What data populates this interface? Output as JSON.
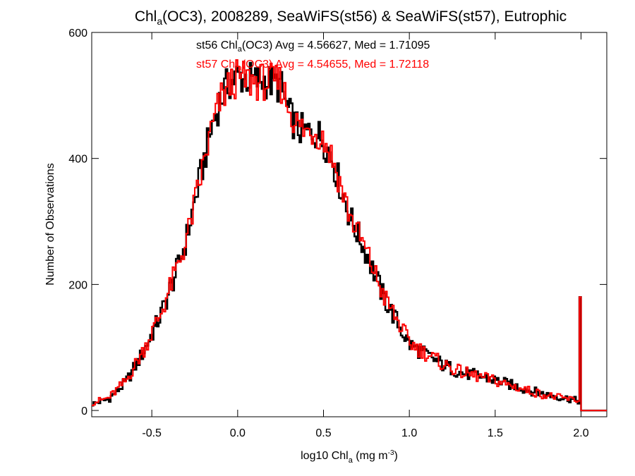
{
  "chart_data": {
    "type": "line",
    "title": {
      "main": "Chl",
      "sub": "a",
      "rest": "(OC3), 2008289, SeaWiFS(st56) & SeaWiFS(st57), Eutrophic"
    },
    "xlabel": {
      "main": "log10 Chl",
      "sub": "a",
      "rest": " (mg m",
      "sup": "-3",
      "end": ")"
    },
    "ylabel": "Number of Observations",
    "xlim": [
      -0.85,
      2.15
    ],
    "ylim": [
      -10,
      600
    ],
    "x_ticks": [
      -0.5,
      0.0,
      0.5,
      1.0,
      1.5,
      2.0
    ],
    "x_tick_labels": [
      "-0.5",
      "0.0",
      "0.5",
      "1.0",
      "1.5",
      "2.0"
    ],
    "y_ticks": [
      0,
      200,
      400,
      600
    ],
    "y_tick_labels": [
      "0",
      "200",
      "400",
      "600"
    ],
    "grid": false,
    "legend_position": "top-center",
    "series": [
      {
        "name": "st56",
        "label": {
          "pre": "st56 Chl",
          "sub": "a",
          "post": "(OC3) Avg = 4.56627, Med = 1.71095"
        },
        "color": "#000000",
        "x": [
          -0.85,
          -0.75,
          -0.65,
          -0.55,
          -0.45,
          -0.35,
          -0.3,
          -0.25,
          -0.2,
          -0.15,
          -0.1,
          -0.05,
          0.0,
          0.05,
          0.1,
          0.15,
          0.2,
          0.25,
          0.3,
          0.35,
          0.4,
          0.45,
          0.5,
          0.55,
          0.6,
          0.65,
          0.7,
          0.75,
          0.8,
          0.85,
          0.9,
          0.95,
          1.0,
          1.1,
          1.2,
          1.3,
          1.4,
          1.5,
          1.6,
          1.7,
          1.8,
          1.9,
          1.99
        ],
        "y": [
          10,
          18,
          45,
          92,
          150,
          225,
          270,
          332,
          392,
          450,
          495,
          520,
          530,
          528,
          522,
          525,
          520,
          515,
          470,
          448,
          440,
          442,
          430,
          400,
          355,
          310,
          280,
          250,
          215,
          180,
          155,
          130,
          105,
          88,
          72,
          60,
          55,
          48,
          40,
          32,
          25,
          20,
          15
        ]
      },
      {
        "name": "st57",
        "label": {
          "pre": "st57 Chl",
          "sub": "a",
          "post": "(OC3) Avg = 4.54655, Med = 1.72118"
        },
        "color": "#ff0000",
        "x": [
          -0.85,
          -0.75,
          -0.65,
          -0.55,
          -0.45,
          -0.35,
          -0.3,
          -0.25,
          -0.2,
          -0.15,
          -0.1,
          -0.05,
          0.0,
          0.05,
          0.1,
          0.15,
          0.2,
          0.25,
          0.3,
          0.35,
          0.4,
          0.45,
          0.5,
          0.55,
          0.6,
          0.65,
          0.7,
          0.75,
          0.8,
          0.85,
          0.9,
          0.95,
          1.0,
          1.1,
          1.2,
          1.3,
          1.4,
          1.5,
          1.6,
          1.7,
          1.8,
          1.9,
          1.99
        ],
        "y": [
          12,
          20,
          47,
          95,
          152,
          228,
          268,
          328,
          388,
          448,
          492,
          515,
          528,
          524,
          522,
          522,
          520,
          520,
          480,
          452,
          442,
          445,
          432,
          402,
          358,
          312,
          282,
          252,
          218,
          182,
          158,
          133,
          108,
          90,
          73,
          61,
          54,
          47,
          39,
          31,
          24,
          19,
          16
        ]
      }
    ],
    "spike": {
      "x": 2.0,
      "y": 180,
      "note_x_end": 2.15
    }
  }
}
